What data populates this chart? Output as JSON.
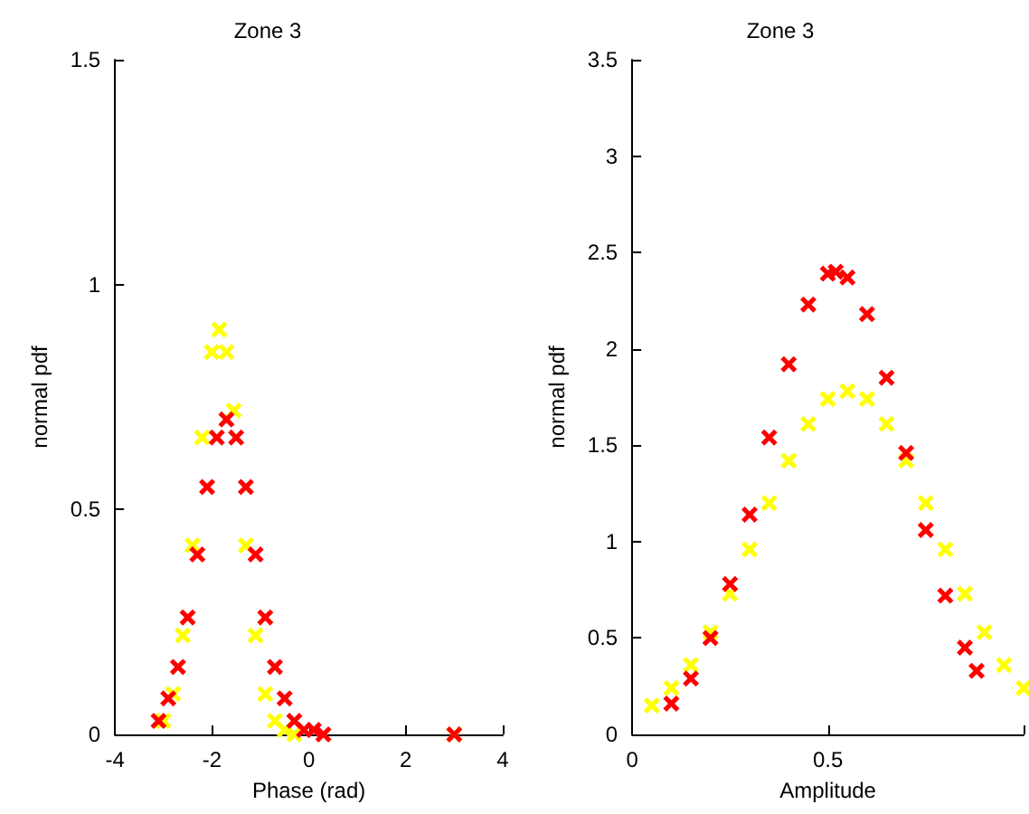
{
  "chart_data": [
    {
      "type": "scatter",
      "title": "Zone 3",
      "xlabel": "Phase (rad)",
      "ylabel": "normal pdf",
      "xlim": [
        -4,
        4
      ],
      "xticks": [
        -4,
        -2,
        0,
        2,
        4
      ],
      "ylim": [
        0,
        1.5
      ],
      "yticks": [
        0,
        0.5,
        1,
        1.5
      ],
      "marker": "cross",
      "series": [
        {
          "color": "#ffff00",
          "x": [
            -3.0,
            -2.8,
            -2.6,
            -2.4,
            -2.2,
            -2.0,
            -1.85,
            -1.7,
            -1.55,
            -1.3,
            -1.1,
            -0.9,
            -0.7,
            -0.5,
            -0.3,
            3.0
          ],
          "values": [
            0.03,
            0.09,
            0.22,
            0.42,
            0.66,
            0.85,
            0.9,
            0.85,
            0.72,
            0.42,
            0.22,
            0.09,
            0.03,
            0.01,
            0.0,
            0.0
          ]
        },
        {
          "color": "#ff0000",
          "x": [
            -3.1,
            -2.9,
            -2.7,
            -2.5,
            -2.3,
            -2.1,
            -1.9,
            -1.7,
            -1.5,
            -1.3,
            -1.1,
            -0.9,
            -0.7,
            -0.5,
            -0.3,
            -0.1,
            0.1,
            0.3,
            3.0
          ],
          "values": [
            0.03,
            0.08,
            0.15,
            0.26,
            0.4,
            0.55,
            0.66,
            0.7,
            0.66,
            0.55,
            0.4,
            0.26,
            0.15,
            0.08,
            0.03,
            0.01,
            0.01,
            0.0,
            0.0
          ]
        }
      ]
    },
    {
      "type": "scatter",
      "title": "Zone 3",
      "xlabel": "Amplitude",
      "ylabel": "normal pdf",
      "xlim": [
        0,
        1
      ],
      "xticks": [
        0,
        0.5,
        {
          "value": 1,
          "label": null
        }
      ],
      "ylim": [
        0,
        3.5
      ],
      "yticks": [
        0,
        0.5,
        1,
        1.5,
        2,
        2.5,
        3,
        3.5
      ],
      "marker": "cross",
      "series": [
        {
          "color": "#ffff00",
          "x": [
            0.05,
            0.1,
            0.15,
            0.2,
            0.25,
            0.3,
            0.35,
            0.4,
            0.45,
            0.5,
            0.55,
            0.6,
            0.65,
            0.7,
            0.75,
            0.8,
            0.85,
            0.9,
            0.95,
            1.0
          ],
          "values": [
            0.15,
            0.24,
            0.36,
            0.53,
            0.73,
            0.96,
            1.2,
            1.42,
            1.61,
            1.74,
            1.78,
            1.74,
            1.61,
            1.42,
            1.2,
            0.96,
            0.73,
            0.53,
            0.36,
            0.24
          ]
        },
        {
          "color": "#ff0000",
          "x": [
            0.1,
            0.15,
            0.2,
            0.25,
            0.3,
            0.35,
            0.4,
            0.45,
            0.5,
            0.52,
            0.55,
            0.6,
            0.65,
            0.7,
            0.75,
            0.8,
            0.85,
            0.88
          ],
          "values": [
            0.16,
            0.29,
            0.5,
            0.78,
            1.14,
            1.54,
            1.92,
            2.23,
            2.39,
            2.4,
            2.37,
            2.18,
            1.85,
            1.46,
            1.06,
            0.72,
            0.45,
            0.33
          ]
        }
      ]
    }
  ]
}
